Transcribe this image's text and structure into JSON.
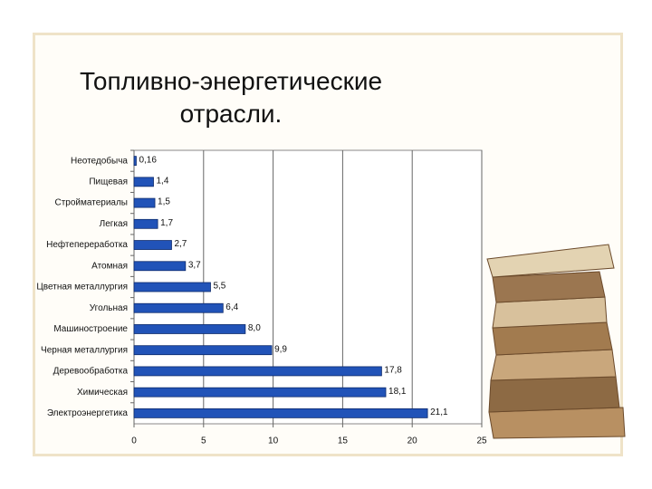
{
  "chart_data": {
    "type": "barh",
    "title": "Топливно-энергетические отрасли.",
    "categories": [
      "Неотедобыча",
      "Пищевая",
      "Стройматериалы",
      "Легкая",
      "Нефтепереработка",
      "Атомная",
      "Цветная металлургия",
      "Угольная",
      "Машиностроение",
      "Черная металлургия",
      "Деревообработка",
      "Химическая",
      "Электроэнергетика"
    ],
    "values": [
      0.16,
      1.4,
      1.5,
      1.7,
      2.7,
      3.7,
      5.5,
      6.4,
      8.0,
      9.9,
      17.8,
      18.1,
      21.1
    ],
    "value_labels": [
      "0,16",
      "1,4",
      "1,5",
      "1,7",
      "2,7",
      "3,7",
      "5,5",
      "6,4",
      "8,0",
      "9,9",
      "17,8",
      "18,1",
      "21,1"
    ],
    "color": "#2153b8",
    "xlim": [
      0,
      25
    ],
    "xticks": [
      0,
      5,
      10,
      15,
      20,
      25
    ],
    "grid": true
  }
}
